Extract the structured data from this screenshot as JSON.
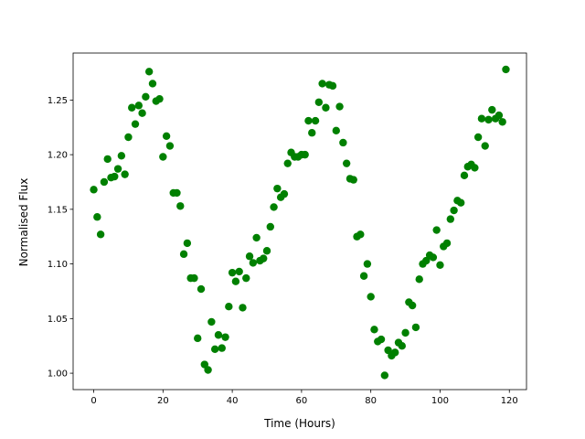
{
  "chart_data": {
    "type": "scatter",
    "xlabel": "Time (Hours)",
    "ylabel": "Normalised Flux",
    "color": "#008000",
    "x": [
      0,
      1,
      2,
      3,
      4,
      5,
      6,
      7,
      8,
      9,
      10,
      11,
      12,
      13,
      14,
      15,
      16,
      17,
      18,
      19,
      20,
      21,
      22,
      23,
      24,
      25,
      26,
      27,
      28,
      29,
      30,
      31,
      32,
      33,
      34,
      35,
      36,
      37,
      38,
      39,
      40,
      41,
      42,
      43,
      44,
      45,
      46,
      47,
      48,
      49,
      50,
      51,
      52,
      53,
      54,
      55,
      56,
      57,
      58,
      59,
      60,
      61,
      62,
      63,
      64,
      65,
      66,
      67,
      68,
      69,
      70,
      71,
      72,
      73,
      74,
      75,
      76,
      77,
      78,
      79,
      80,
      81,
      82,
      83,
      84,
      85,
      86,
      87,
      88,
      89,
      90,
      91,
      92,
      93,
      94,
      95,
      96,
      97,
      98,
      99,
      100,
      101,
      102,
      103,
      104,
      105,
      106,
      107,
      108,
      109,
      110,
      111,
      112,
      113,
      114,
      115,
      116,
      117,
      118,
      119
    ],
    "values": [
      1.168,
      1.143,
      1.127,
      1.175,
      1.196,
      1.179,
      1.18,
      1.187,
      1.199,
      1.182,
      1.216,
      1.243,
      1.228,
      1.245,
      1.238,
      1.253,
      1.276,
      1.265,
      1.249,
      1.251,
      1.198,
      1.217,
      1.208,
      1.165,
      1.165,
      1.153,
      1.109,
      1.119,
      1.087,
      1.087,
      1.032,
      1.077,
      1.008,
      1.003,
      1.047,
      1.022,
      1.035,
      1.023,
      1.033,
      1.061,
      1.092,
      1.084,
      1.093,
      1.06,
      1.087,
      1.107,
      1.101,
      1.124,
      1.103,
      1.105,
      1.112,
      1.134,
      1.152,
      1.169,
      1.161,
      1.164,
      1.192,
      1.202,
      1.198,
      1.198,
      1.2,
      1.2,
      1.231,
      1.22,
      1.231,
      1.248,
      1.265,
      1.243,
      1.264,
      1.263,
      1.222,
      1.244,
      1.211,
      1.192,
      1.178,
      1.177,
      1.125,
      1.127,
      1.089,
      1.1,
      1.07,
      1.04,
      1.029,
      1.031,
      0.998,
      1.021,
      1.016,
      1.019,
      1.028,
      1.025,
      1.037,
      1.065,
      1.062,
      1.042,
      1.086,
      1.1,
      1.103,
      1.108,
      1.106,
      1.131,
      1.099,
      1.116,
      1.119,
      1.141,
      1.149,
      1.158,
      1.156,
      1.181,
      1.189,
      1.191,
      1.188,
      1.216,
      1.233,
      1.208,
      1.232,
      1.241,
      1.233,
      1.236,
      1.23,
      1.278
    ],
    "xlim": [
      -5.95,
      124.95
    ],
    "ylim": [
      0.985,
      1.293
    ],
    "xticks": [
      0,
      20,
      40,
      60,
      80,
      100,
      120
    ],
    "yticks": [
      {
        "value": 1,
        "label": "1.00"
      },
      1.05,
      {
        "value": 1.1,
        "label": "1.10"
      },
      1.15,
      {
        "value": 1.2,
        "label": "1.20"
      },
      1.25
    ]
  }
}
